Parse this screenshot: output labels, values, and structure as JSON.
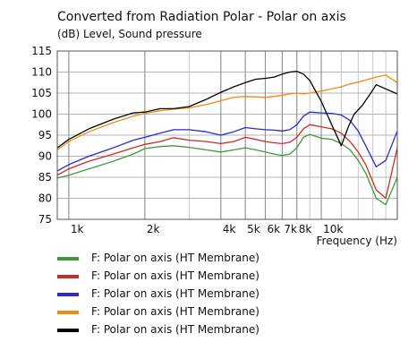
{
  "chart_data": {
    "type": "line",
    "title": "Converted from Radiation Polar - Polar on axis",
    "ylabel": "(dB)  Level, Sound pressure",
    "xlabel": "Frequency  (Hz)",
    "xscale": "log",
    "xlim": [
      900,
      20000
    ],
    "ylim": [
      75,
      115
    ],
    "grid": true,
    "legend_position": "bottom",
    "y_ticks": [
      75,
      80,
      85,
      90,
      95,
      100,
      105,
      110,
      115
    ],
    "x_ticks": [
      {
        "value": 1000,
        "label": "1k"
      },
      {
        "value": 2000,
        "label": "2k"
      },
      {
        "value": 4000,
        "label": "4k"
      },
      {
        "value": 5000,
        "label": "5k"
      },
      {
        "value": 6000,
        "label": "6k"
      },
      {
        "value": 7000,
        "label": "7k"
      },
      {
        "value": 8000,
        "label": "8k"
      },
      {
        "value": 10000,
        "label": "10k"
      }
    ],
    "series": [
      {
        "name": "F: Polar on axis  (HT Membrane)",
        "color": "#3c9a3c",
        "x": [
          900,
          1000,
          1200,
          1500,
          1800,
          2000,
          2300,
          2600,
          3000,
          3500,
          4000,
          4500,
          5000,
          5500,
          6000,
          6500,
          7000,
          7500,
          8000,
          8500,
          9000,
          10000,
          11000,
          12000,
          13000,
          14000,
          15000,
          16500,
          18000,
          20000
        ],
        "y": [
          84.8,
          85.5,
          87,
          88.8,
          90.5,
          91.8,
          92.3,
          92.5,
          92.1,
          91.5,
          91,
          91.5,
          92,
          91.5,
          91,
          90.5,
          90.2,
          90.5,
          92,
          94.5,
          95.2,
          94.3,
          94,
          93,
          91.5,
          89,
          86,
          80,
          78.5,
          85
        ]
      },
      {
        "name": "F: Polar on axis  (HT Membrane)",
        "color": "#cc2a2a",
        "x": [
          900,
          1000,
          1200,
          1500,
          1800,
          2000,
          2300,
          2600,
          3000,
          3500,
          4000,
          4500,
          5000,
          5500,
          6000,
          6500,
          7000,
          7500,
          8000,
          8500,
          9000,
          10000,
          11000,
          12000,
          13000,
          14000,
          15000,
          16500,
          18000,
          20000
        ],
        "y": [
          85.5,
          87,
          88.8,
          90.5,
          92,
          92.8,
          93.5,
          94.4,
          93.8,
          93.5,
          93,
          93.5,
          94.5,
          94,
          93.5,
          93.2,
          93,
          93.3,
          94.5,
          96.5,
          97.5,
          97,
          96.5,
          95.5,
          93.5,
          91,
          88,
          82,
          80,
          92
        ]
      },
      {
        "name": "F: Polar on axis  (HT Membrane)",
        "color": "#2a2ad4",
        "x": [
          900,
          1000,
          1200,
          1500,
          1800,
          2000,
          2300,
          2600,
          3000,
          3500,
          4000,
          4500,
          5000,
          5500,
          6000,
          6500,
          7000,
          7500,
          8000,
          8500,
          9000,
          10000,
          11000,
          12000,
          13000,
          14000,
          15000,
          16500,
          18000,
          20000
        ],
        "y": [
          86.5,
          88,
          90,
          92,
          93.8,
          94.5,
          95.5,
          96.3,
          96.3,
          95.8,
          95,
          95.8,
          96.8,
          96.5,
          96.3,
          96.2,
          96,
          96.3,
          97.5,
          99.5,
          100.5,
          100.3,
          100.2,
          99.8,
          98.5,
          96,
          92.5,
          87.5,
          89,
          96
        ]
      },
      {
        "name": "F: Polar on axis  (HT Membrane)",
        "color": "#f08a10",
        "x": [
          900,
          1000,
          1200,
          1500,
          1800,
          2000,
          2300,
          2600,
          3000,
          3500,
          4000,
          4500,
          5000,
          5500,
          6000,
          6500,
          7000,
          7500,
          8000,
          8500,
          9000,
          10000,
          11000,
          12000,
          13000,
          14000,
          15000,
          16500,
          18000,
          20000
        ],
        "y": [
          91.5,
          93.5,
          95.8,
          98,
          99.5,
          100.2,
          100.8,
          101.2,
          101.5,
          102.3,
          103.2,
          104,
          104.2,
          104.1,
          104,
          104.2,
          104.5,
          104.8,
          105,
          104.8,
          105,
          105.5,
          106,
          106.5,
          107.2,
          107.6,
          108.1,
          108.8,
          109.3,
          107.5
        ]
      },
      {
        "name": "F: Polar on axis  (HT Membrane)",
        "color": "#000000",
        "x": [
          900,
          1000,
          1200,
          1500,
          1800,
          2000,
          2300,
          2600,
          3000,
          3500,
          4000,
          4500,
          5000,
          5500,
          6000,
          6500,
          7000,
          7500,
          8000,
          8500,
          9000,
          10000,
          11000,
          12000,
          12800,
          13500,
          14500,
          15500,
          16500,
          18000,
          20000
        ],
        "y": [
          92,
          94,
          96.5,
          98.8,
          100.3,
          100.5,
          101.3,
          101.3,
          101.8,
          103.5,
          105.2,
          106.5,
          107.5,
          108.3,
          108.5,
          108.8,
          109.5,
          110,
          110.2,
          109.5,
          108,
          103,
          97.5,
          92.5,
          97,
          100,
          102,
          104.5,
          107,
          106,
          104.8
        ]
      }
    ]
  }
}
